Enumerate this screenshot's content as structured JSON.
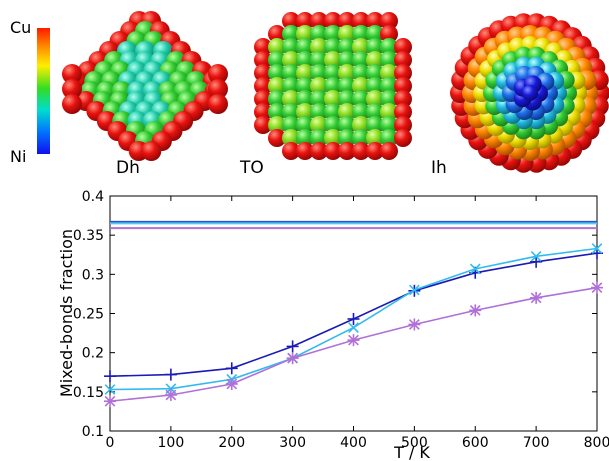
{
  "colorbar": {
    "top_label": "Cu",
    "bottom_label": "Ni"
  },
  "nanoparticles": [
    {
      "label": "Dh"
    },
    {
      "label": "TO"
    },
    {
      "label": "Ih"
    }
  ],
  "colors": {
    "series_Dh": "#1a1ab8",
    "series_TO": "#33bbee",
    "series_Ih": "#b070d8",
    "shell_red": "#e8130f",
    "core_green": "#33cc33"
  },
  "chart_data": {
    "type": "line",
    "xlabel": "T / K",
    "ylabel": "Mixed-bonds fraction",
    "xlim": [
      0,
      800
    ],
    "ylim": [
      0.1,
      0.4
    ],
    "x_ticks": [
      "0",
      "100",
      "200",
      "300",
      "400",
      "500",
      "600",
      "700",
      "800"
    ],
    "y_ticks": [
      "0.1",
      "0.15",
      "0.2",
      "0.25",
      "0.3",
      "0.35",
      "0.4"
    ],
    "grid": false,
    "x": [
      0,
      100,
      200,
      300,
      400,
      500,
      600,
      700,
      800
    ],
    "series": [
      {
        "marker": "plus",
        "color": "#1a1ab8",
        "values": [
          0.17,
          0.172,
          0.18,
          0.208,
          0.243,
          0.279,
          0.302,
          0.316,
          0.327
        ]
      },
      {
        "marker": "x",
        "color": "#33bbee",
        "values": [
          0.153,
          0.154,
          0.166,
          0.193,
          0.232,
          0.28,
          0.307,
          0.323,
          0.333
        ]
      },
      {
        "marker": "asterisk",
        "color": "#b070d8",
        "values": [
          0.138,
          0.146,
          0.16,
          0.193,
          0.216,
          0.236,
          0.254,
          0.27,
          0.283
        ]
      }
    ],
    "reference_lines": [
      {
        "y": 0.367,
        "color": "#2a4fd0"
      },
      {
        "y": 0.365,
        "color": "#55c8ee"
      },
      {
        "y": 0.359,
        "color": "#b070d8"
      }
    ]
  }
}
